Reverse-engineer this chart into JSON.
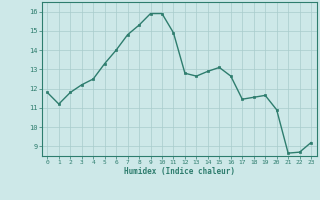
{
  "xlabel": "Humidex (Indice chaleur)",
  "ylabel": "",
  "x": [
    0,
    1,
    2,
    3,
    4,
    5,
    6,
    7,
    8,
    9,
    10,
    11,
    12,
    13,
    14,
    15,
    16,
    17,
    18,
    19,
    20,
    21,
    22,
    23
  ],
  "y": [
    11.8,
    11.2,
    11.8,
    12.2,
    12.5,
    13.3,
    14.0,
    14.8,
    15.3,
    15.9,
    15.9,
    14.9,
    12.8,
    12.65,
    12.9,
    13.1,
    12.65,
    11.45,
    11.55,
    11.65,
    10.9,
    8.65,
    8.7,
    9.2
  ],
  "line_color": "#2e7d6e",
  "marker_color": "#2e7d6e",
  "bg_color": "#cde8e8",
  "grid_color": "#a8cccc",
  "tick_color": "#2e7d6e",
  "label_color": "#2e7d6e",
  "spine_color": "#2e7d6e",
  "xlim": [
    -0.5,
    23.5
  ],
  "ylim": [
    8.5,
    16.5
  ],
  "yticks": [
    9,
    10,
    11,
    12,
    13,
    14,
    15,
    16
  ],
  "xticks": [
    0,
    1,
    2,
    3,
    4,
    5,
    6,
    7,
    8,
    9,
    10,
    11,
    12,
    13,
    14,
    15,
    16,
    17,
    18,
    19,
    20,
    21,
    22,
    23
  ]
}
